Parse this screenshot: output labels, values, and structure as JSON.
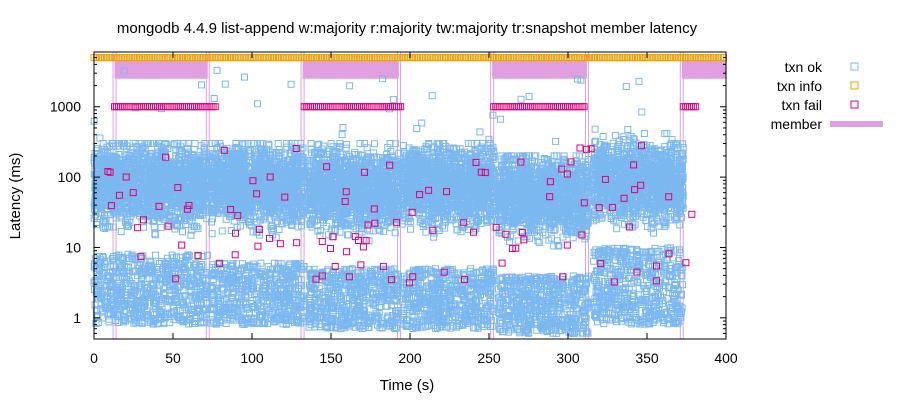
{
  "chart_data": {
    "type": "scatter",
    "title": "mongodb 4.4.9 list-append w:majority r:majority tw:majority tr:snapshot member latency",
    "xlabel": "Time (s)",
    "ylabel": "Latency (ms)",
    "xlim": [
      0,
      400
    ],
    "ylim": [
      0.5,
      6000
    ],
    "yscale": "log",
    "grid": false,
    "legend_placement": "outside-top-right",
    "x_ticks": [
      0,
      50,
      100,
      150,
      200,
      250,
      300,
      350,
      400
    ],
    "x_tick_labels": [
      "0",
      "50",
      "100",
      "150",
      "200",
      "250",
      "300",
      "350",
      "400"
    ],
    "y_ticks": [
      1,
      10,
      100,
      1000
    ],
    "y_tick_labels": [
      "1",
      "10",
      "100",
      "1000"
    ],
    "series": [
      {
        "name": "txn ok",
        "marker": "square",
        "color": "#7cb8f0",
        "clusters": [
          {
            "x_range": [
              0,
              72
            ],
            "high_band": [
              20,
              300
            ],
            "low_band": [
              0.8,
              8
            ]
          },
          {
            "x_range": [
              74,
              133
            ],
            "high_band": [
              20,
              300
            ],
            "low_band": [
              0.8,
              6
            ]
          },
          {
            "x_range": [
              136,
              193
            ],
            "high_band": [
              15,
              300
            ],
            "low_band": [
              0.7,
              5
            ]
          },
          {
            "x_range": [
              195,
              253
            ],
            "high_band": [
              20,
              300
            ],
            "low_band": [
              0.7,
              5
            ]
          },
          {
            "x_range": [
              256,
              313
            ],
            "high_band": [
              15,
              200
            ],
            "low_band": [
              0.6,
              4
            ]
          },
          {
            "x_range": [
              316,
              373
            ],
            "high_band": [
              15,
              500
            ],
            "low_band": [
              0.8,
              10
            ]
          }
        ]
      },
      {
        "name": "txn info",
        "marker": "square",
        "color": "#f0a000",
        "band": {
          "x_range": [
            0,
            400
          ],
          "y": 5000
        }
      },
      {
        "name": "txn fail",
        "marker": "square",
        "color": "#e0007a",
        "band_segments": [
          {
            "x_range": [
              13,
              77
            ],
            "y": 1000
          },
          {
            "x_range": [
              133,
              195
            ],
            "y": 1000
          },
          {
            "x_range": [
              253,
              311
            ],
            "y": 1000
          },
          {
            "x_range": [
              373,
              382
            ],
            "y": 1000
          }
        ],
        "scattered_range": [
          3,
          300
        ]
      },
      {
        "name": "member",
        "marker": "line",
        "color": "#e0a0e0",
        "intervals": [
          [
            13,
            72
          ],
          [
            132,
            193
          ],
          [
            252,
            312
          ],
          [
            372,
            400
          ]
        ],
        "band_y": [
          2500,
          4500
        ]
      }
    ]
  }
}
